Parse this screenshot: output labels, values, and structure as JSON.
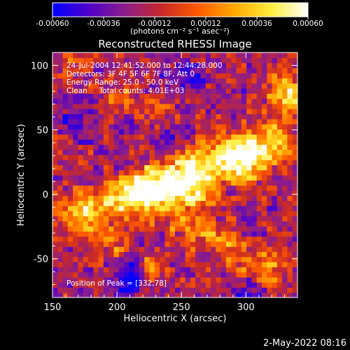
{
  "chart_data": {
    "type": "heatmap",
    "title": "Reconstructed RHESSI Image",
    "xlabel": "Heliocentric X (arcsec)",
    "ylabel": "Heliocentric Y (arcsec)",
    "xlim": [
      150,
      340
    ],
    "ylim": [
      -80,
      110
    ],
    "x_ticks": [
      150,
      200,
      250,
      300
    ],
    "y_ticks": [
      -50,
      0,
      50,
      100
    ],
    "colorbar": {
      "range": [
        -0.0006,
        0.0006
      ],
      "ticks": [
        -0.0006,
        -0.00036,
        -0.00012,
        0.00012,
        0.00036,
        0.0006
      ],
      "tick_labels": [
        "-0.00060",
        "-0.00036",
        "-0.00012",
        "0.00012",
        "0.00036",
        "0.00060"
      ],
      "unit_label": "(photons cm⁻² s⁻¹ asec⁻²)",
      "colors": [
        "#0000ff",
        "#5000c8",
        "#8c1e8c",
        "#c82828",
        "#ff5a00",
        "#ffaa00",
        "#ffee40",
        "#ffffff"
      ]
    },
    "annotations": [
      "24-Jul-2004 12:41:52.000 to 12:44:28.000",
      "Detectors: 3F 4F 5F 6F 7F 8F, Att 0",
      "Energy Range: 25.0 - 50.0 keV",
      "Clean     Total counts: 4.01E+03"
    ],
    "peak_label": "Position of Peak = [332,78]",
    "peak": {
      "x": 332,
      "y": 78
    },
    "grid": false,
    "ridges": [
      {
        "x0": 220,
        "y0": 5,
        "x1": 320,
        "y1": 40,
        "amp": 0.0006,
        "sigma": 12
      },
      {
        "x0": 175,
        "y0": -10,
        "x1": 260,
        "y1": 5,
        "amp": 0.00045,
        "sigma": 10
      },
      {
        "x0": 250,
        "y0": -20,
        "x1": 320,
        "y1": -60,
        "amp": 0.00035,
        "sigma": 9
      },
      {
        "x0": 160,
        "y0": -15,
        "x1": 200,
        "y1": -40,
        "amp": 0.0003,
        "sigma": 8
      }
    ],
    "blobs": [
      {
        "x": 332,
        "y": 78,
        "amp": 0.00062,
        "sigma": 10
      },
      {
        "x": 300,
        "y": 25,
        "amp": 0.0004,
        "sigma": 10
      },
      {
        "x": 205,
        "y": 75,
        "amp": 0.0003,
        "sigma": 8
      },
      {
        "x": 235,
        "y": 65,
        "amp": 0.00025,
        "sigma": 9
      },
      {
        "x": 225,
        "y": -55,
        "amp": 0.0003,
        "sigma": 8
      },
      {
        "x": 165,
        "y": 105,
        "amp": 0.0002,
        "sigma": 7
      },
      {
        "x": 210,
        "y": -65,
        "amp": -0.0005,
        "sigma": 9
      },
      {
        "x": 255,
        "y": 90,
        "amp": -0.0003,
        "sigma": 10
      },
      {
        "x": 165,
        "y": 60,
        "amp": -0.0002,
        "sigma": 10
      },
      {
        "x": 300,
        "y": -75,
        "amp": -0.00025,
        "sigma": 8
      },
      {
        "x": 240,
        "y": 45,
        "amp": -0.00035,
        "sigma": 7
      }
    ]
  },
  "footer_timestamp": "2-May-2022 08:16"
}
